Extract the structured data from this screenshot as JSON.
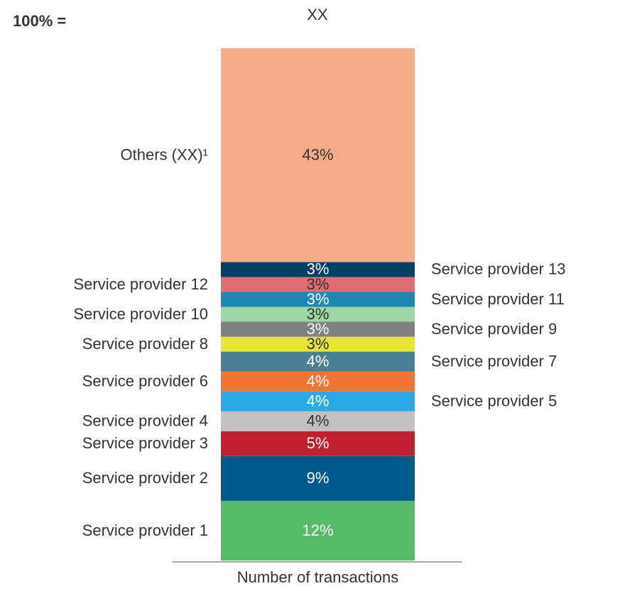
{
  "chart_data": {
    "type": "stacked_bar",
    "total_label": "100% =",
    "total_value": "XX",
    "categories": [
      "Number of transactions"
    ],
    "ylim": [
      0,
      103
    ],
    "series": [
      {
        "name": "Service provider 1",
        "color": "#55bb66",
        "values": [
          12
        ],
        "value_labels": [
          "12%"
        ],
        "label_color": "#ffffff",
        "label_side": "left"
      },
      {
        "name": "Service provider 2",
        "color": "#005a8c",
        "values": [
          9
        ],
        "value_labels": [
          "9%"
        ],
        "label_color": "#ffffff",
        "label_side": "left"
      },
      {
        "name": "Service provider 3",
        "color": "#c0202f",
        "values": [
          5
        ],
        "value_labels": [
          "5%"
        ],
        "label_color": "#ffffff",
        "label_side": "left"
      },
      {
        "name": "Service provider 4",
        "color": "#c0c0c0",
        "values": [
          4
        ],
        "value_labels": [
          "4%"
        ],
        "label_color": "#333333",
        "label_side": "left"
      },
      {
        "name": "Service provider 5",
        "color": "#29aae1",
        "values": [
          4
        ],
        "value_labels": [
          "4%"
        ],
        "label_color": "#ffffff",
        "label_side": "right"
      },
      {
        "name": "Service provider 6",
        "color": "#f07535",
        "values": [
          4
        ],
        "value_labels": [
          "4%"
        ],
        "label_color": "#ffffff",
        "label_side": "left"
      },
      {
        "name": "Service provider 7",
        "color": "#4a7f96",
        "values": [
          4
        ],
        "value_labels": [
          "4%"
        ],
        "label_color": "#ffffff",
        "label_side": "right"
      },
      {
        "name": "Service provider 8",
        "color": "#e5e535",
        "values": [
          3
        ],
        "value_labels": [
          "3%"
        ],
        "label_color": "#333333",
        "label_side": "left"
      },
      {
        "name": "Service provider 9",
        "color": "#808080",
        "values": [
          3
        ],
        "value_labels": [
          "3%"
        ],
        "label_color": "#ffffff",
        "label_side": "right"
      },
      {
        "name": "Service provider 10",
        "color": "#9dd6a5",
        "values": [
          3
        ],
        "value_labels": [
          "3%"
        ],
        "label_color": "#333333",
        "label_side": "left"
      },
      {
        "name": "Service provider 11",
        "color": "#1d87b5",
        "values": [
          3
        ],
        "value_labels": [
          "3%"
        ],
        "label_color": "#ffffff",
        "label_side": "right"
      },
      {
        "name": "Service provider 12",
        "color": "#e06b75",
        "values": [
          3
        ],
        "value_labels": [
          "3%"
        ],
        "label_color": "#333333",
        "label_side": "left"
      },
      {
        "name": "Service provider 13",
        "color": "#003f66",
        "values": [
          3
        ],
        "value_labels": [
          "3%"
        ],
        "label_color": "#ffffff",
        "label_side": "right"
      },
      {
        "name": "Others (XX)¹",
        "color": "#f6ab88",
        "values": [
          43
        ],
        "value_labels": [
          "43%"
        ],
        "label_color": "#333333",
        "label_side": "left"
      }
    ]
  }
}
